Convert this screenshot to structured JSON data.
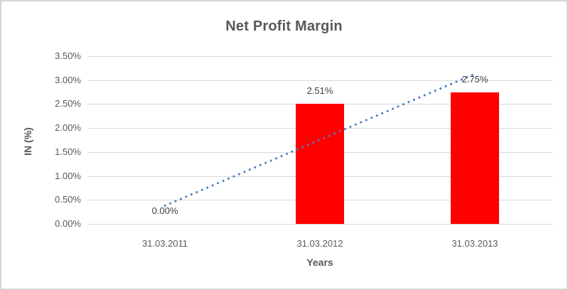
{
  "window": {
    "background": "#ffffff",
    "frame_border_color": "#d4d4d4"
  },
  "chart_data": {
    "type": "bar",
    "title": "Net Profit Margin",
    "xlabel": "Years",
    "ylabel": "IN (%)",
    "categories": [
      "31.03.2011",
      "31.03.2012",
      "31.03.2013"
    ],
    "values": [
      0.0,
      2.51,
      2.75
    ],
    "data_labels": [
      "0.00%",
      "2.51%",
      "2.75%"
    ],
    "ylim": [
      0,
      3.5
    ],
    "ytick_values": [
      0,
      0.5,
      1,
      1.5,
      2,
      2.5,
      3,
      3.5
    ],
    "ytick_labels": [
      "0.00%",
      "0.50%",
      "1.00%",
      "1.50%",
      "2.00%",
      "2.50%",
      "3.00%",
      "3.50%"
    ],
    "grid": "horizontal",
    "legend_position": "none",
    "bar_color": "#ff0000",
    "gridline_color": "#d9d9d9",
    "axis_text_color": "#595959",
    "data_label_color": "#404040",
    "title_color": "#595959",
    "trendline": {
      "type": "linear",
      "style": "dotted",
      "color": "#4a7ebd",
      "start_value": 0.38,
      "end_value": 3.13
    }
  }
}
